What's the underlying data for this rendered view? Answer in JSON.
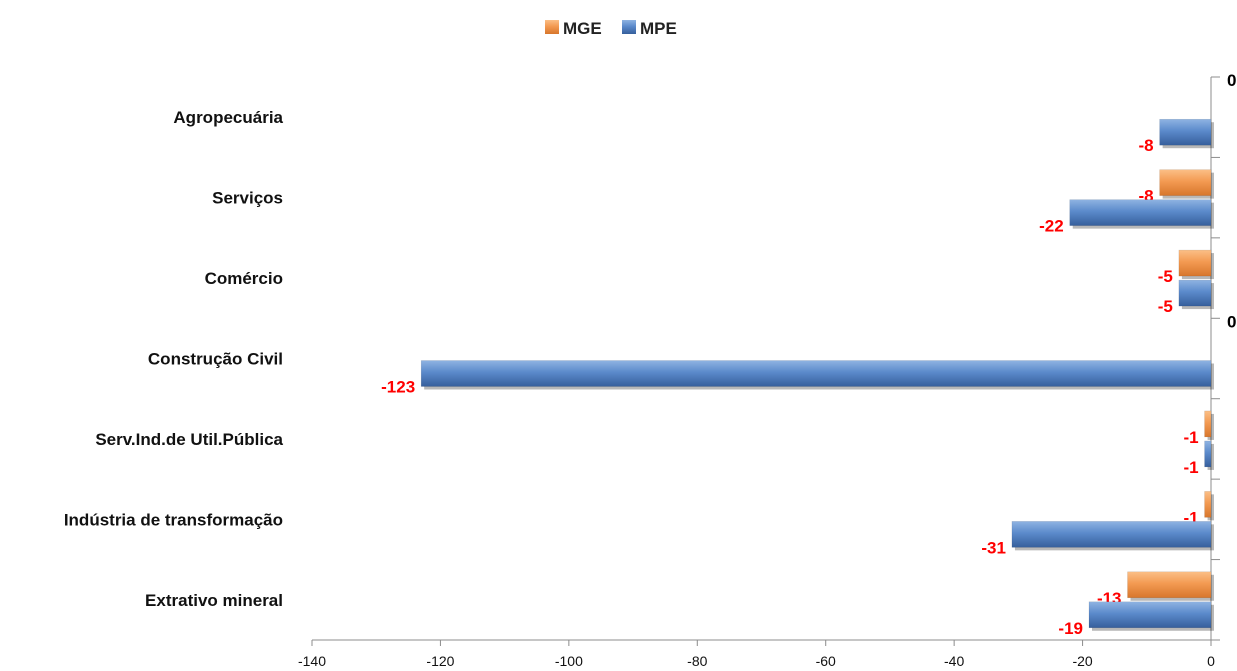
{
  "chart_data": {
    "type": "bar",
    "orientation": "horizontal",
    "categories": [
      "Agropecuária",
      "Serviços",
      "Comércio",
      "Construção Civil",
      "Serv.Ind.de Util.Pública",
      "Indústria de transformação",
      "Extrativo mineral"
    ],
    "series": [
      {
        "name": "MGE",
        "color": "#f0954a",
        "values": [
          0,
          -8,
          -5,
          0,
          -1,
          -1,
          -13
        ]
      },
      {
        "name": "MPE",
        "color": "#4f81c4",
        "values": [
          -8,
          -22,
          -5,
          -123,
          -1,
          -31,
          -19
        ]
      }
    ],
    "data_labels": {
      "MGE": [
        "0",
        "-8",
        "-5",
        "0",
        "-1",
        "-1",
        "-13"
      ],
      "MPE": [
        "-8",
        "-22",
        "-5",
        "-123",
        "-1",
        "-31",
        "-19"
      ]
    },
    "data_label_colors": {
      "negative": "#ff0000",
      "zero": "#000000"
    },
    "xlim": [
      -140,
      0
    ],
    "xticks": [
      -140,
      -120,
      -100,
      -80,
      -60,
      -40,
      -20,
      0
    ],
    "xtick_labels": [
      "-140",
      "-120",
      "-100",
      "-80",
      "-60",
      "-40",
      "-20",
      "0"
    ],
    "legend": {
      "position": "top",
      "entries": [
        "MGE",
        "MPE"
      ]
    },
    "grid": false,
    "title": "",
    "xlabel": "",
    "ylabel": ""
  }
}
